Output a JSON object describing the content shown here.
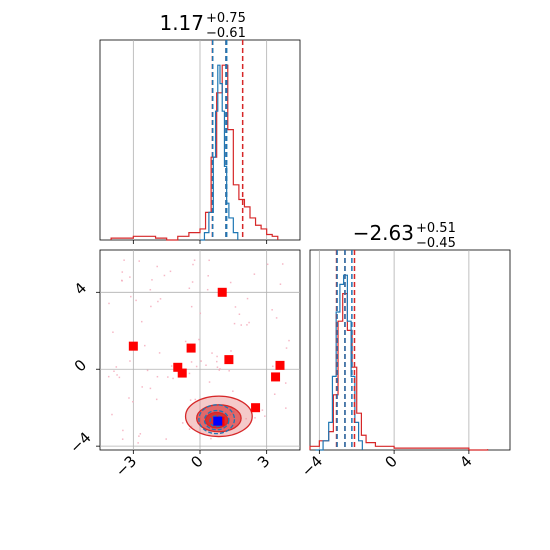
{
  "chart_data": {
    "type": "corner",
    "grid": true,
    "colors": {
      "primary": "#d62728",
      "secondary": "#1f77b4",
      "marker_red": "#ff0000",
      "marker_blue": "#0000ff",
      "scatter": "#f4a6b8"
    },
    "params": [
      {
        "title": {
          "median": "1.17",
          "plus": "+0.75",
          "minus": "−0.61"
        },
        "range": [
          -4.5,
          4.5
        ],
        "ticks": [
          -3,
          0,
          3
        ],
        "tick_labels": [
          "−3",
          "0",
          "3"
        ],
        "quantiles": {
          "red": [
            0.56,
            1.17,
            1.92
          ],
          "blue": [
            0.57,
            1.17,
            1.2
          ]
        },
        "hist_red": [
          [
            -4.0,
            0.01
          ],
          [
            -3.5,
            0.01
          ],
          [
            -3.0,
            0.02
          ],
          [
            -2.5,
            0.02
          ],
          [
            -2.0,
            0.01
          ],
          [
            -1.5,
            0.0
          ],
          [
            -1.0,
            0.02
          ],
          [
            -0.5,
            0.04
          ],
          [
            0.0,
            0.06
          ],
          [
            0.25,
            0.15
          ],
          [
            0.5,
            0.45
          ],
          [
            0.75,
            0.8
          ],
          [
            1.0,
            0.95
          ],
          [
            1.25,
            0.6
          ],
          [
            1.5,
            0.3
          ],
          [
            1.75,
            0.22
          ],
          [
            2.0,
            0.18
          ],
          [
            2.25,
            0.12
          ],
          [
            2.5,
            0.08
          ],
          [
            2.75,
            0.06
          ],
          [
            3.0,
            0.03
          ],
          [
            3.25,
            0.02
          ],
          [
            3.5,
            0.0
          ]
        ],
        "hist_blue": [
          [
            0.0,
            0.0
          ],
          [
            0.2,
            0.04
          ],
          [
            0.4,
            0.15
          ],
          [
            0.6,
            0.45
          ],
          [
            0.7,
            0.7
          ],
          [
            0.8,
            0.95
          ],
          [
            0.9,
            0.85
          ],
          [
            1.0,
            0.7
          ],
          [
            1.1,
            0.4
          ],
          [
            1.2,
            0.2
          ],
          [
            1.3,
            0.12
          ],
          [
            1.5,
            0.04
          ],
          [
            1.7,
            0.0
          ]
        ]
      },
      {
        "title": {
          "median": "−2.63",
          "plus": "+0.51",
          "minus": "−0.45"
        },
        "range": [
          -4.5,
          6.2
        ],
        "ticks": [
          -4,
          0,
          4
        ],
        "tick_labels": [
          "−4",
          "0",
          "4"
        ],
        "quantiles": {
          "red": [
            -3.08,
            -2.63,
            -2.12
          ],
          "blue": [
            -3.05,
            -2.63,
            -2.26
          ]
        },
        "hist_red": [
          [
            -4.5,
            0.02
          ],
          [
            -4.0,
            0.05
          ],
          [
            -3.5,
            0.1
          ],
          [
            -3.25,
            0.3
          ],
          [
            -3.0,
            0.7
          ],
          [
            -2.75,
            0.85
          ],
          [
            -2.5,
            0.65
          ],
          [
            -2.25,
            0.45
          ],
          [
            -2.0,
            0.2
          ],
          [
            -1.75,
            0.08
          ],
          [
            -1.5,
            0.04
          ],
          [
            -1.0,
            0.02
          ],
          [
            0.0,
            0.01
          ],
          [
            1.0,
            0.01
          ],
          [
            2.0,
            0.01
          ],
          [
            3.0,
            0.01
          ],
          [
            4.0,
            0.0
          ],
          [
            5.0,
            0.005
          ]
        ],
        "hist_blue": [
          [
            -4.2,
            0.0
          ],
          [
            -3.8,
            0.05
          ],
          [
            -3.5,
            0.15
          ],
          [
            -3.3,
            0.4
          ],
          [
            -3.1,
            0.75
          ],
          [
            -2.9,
            0.9
          ],
          [
            -2.7,
            0.95
          ],
          [
            -2.5,
            0.7
          ],
          [
            -2.3,
            0.4
          ],
          [
            -2.1,
            0.15
          ],
          [
            -1.9,
            0.05
          ],
          [
            -1.7,
            0.0
          ]
        ]
      }
    ],
    "joint": {
      "xlim": [
        -4.5,
        4.5
      ],
      "ylim": [
        -4.2,
        6.2
      ],
      "xticks": [
        -3,
        0,
        3
      ],
      "yticks": [
        -4,
        0,
        4
      ],
      "xtick_labels": [
        "−3",
        "0",
        "3"
      ],
      "ytick_labels": [
        "−4",
        "0",
        "4"
      ],
      "red_squares": [
        [
          1.0,
          4.0
        ],
        [
          -3.0,
          1.2
        ],
        [
          -0.4,
          1.1
        ],
        [
          1.3,
          0.5
        ],
        [
          -1.0,
          0.1
        ],
        [
          -0.8,
          -0.2
        ],
        [
          3.6,
          0.2
        ],
        [
          3.4,
          -0.4
        ],
        [
          2.5,
          -2.0
        ],
        [
          0.9,
          -2.7
        ]
      ],
      "blue_square": [
        0.8,
        -2.7
      ],
      "contours_red": [
        {
          "cx": 0.85,
          "cy": -2.45,
          "rx": 1.5,
          "ry": 1.05,
          "fill": "#e88a8a",
          "opacity": 0.45
        },
        {
          "cx": 0.85,
          "cy": -2.55,
          "rx": 1.0,
          "ry": 0.7,
          "fill": "#d62728",
          "opacity": 0.6
        },
        {
          "cx": 0.75,
          "cy": -2.65,
          "rx": 0.5,
          "ry": 0.4,
          "fill": "#d62728",
          "opacity": 0.85
        }
      ],
      "contours_blue": [
        {
          "cx": 0.75,
          "cy": -2.6,
          "rx": 0.8,
          "ry": 0.75
        },
        {
          "cx": 0.75,
          "cy": -2.65,
          "rx": 0.55,
          "ry": 0.5
        },
        {
          "cx": 0.75,
          "cy": -2.7,
          "rx": 0.3,
          "ry": 0.28
        }
      ]
    }
  }
}
